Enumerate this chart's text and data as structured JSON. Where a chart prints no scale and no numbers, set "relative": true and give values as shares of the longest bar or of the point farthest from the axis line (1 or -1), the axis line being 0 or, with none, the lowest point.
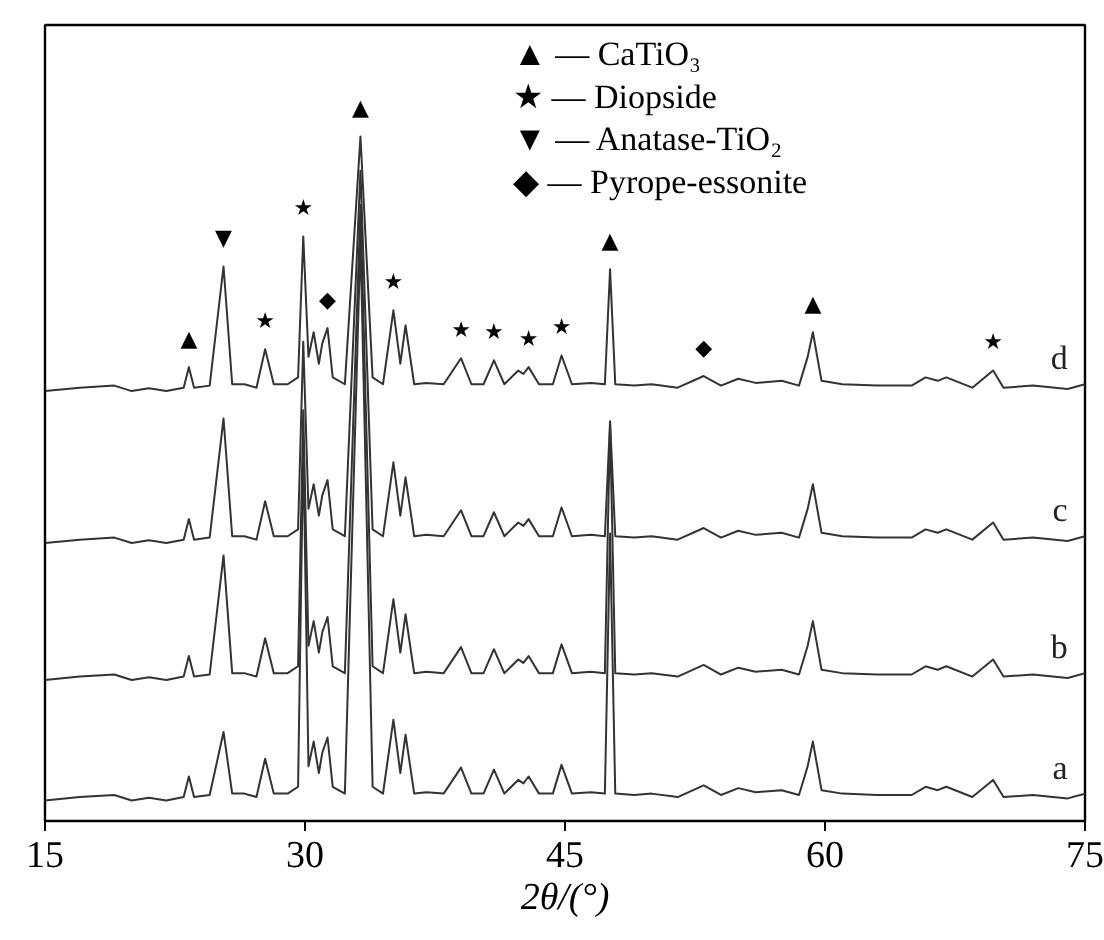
{
  "chart_data": {
    "type": "line",
    "xlabel": "2θ/(°)",
    "relative": true,
    "tick_labels": "x",
    "grid": false,
    "marker": "none",
    "line_style": "solid",
    "xlim": [
      15,
      75
    ],
    "xticks": [
      15,
      30,
      45,
      60,
      75
    ],
    "x": [
      15,
      17,
      19,
      20,
      21,
      22,
      23,
      23.3,
      23.6,
      24.5,
      25.3,
      25.8,
      26.5,
      27.2,
      27.7,
      28.2,
      29,
      29.6,
      29.9,
      30.2,
      30.5,
      30.8,
      31.0,
      31.3,
      31.6,
      32.3,
      33.2,
      33.9,
      34.5,
      35.1,
      35.5,
      35.8,
      36.3,
      37,
      38,
      39,
      39.6,
      40.3,
      40.9,
      41.5,
      42.3,
      42.6,
      42.9,
      43.5,
      44.3,
      44.8,
      45.4,
      46.5,
      47.3,
      47.6,
      47.9,
      49,
      50,
      51.5,
      53,
      54,
      55,
      56,
      57.5,
      58.5,
      59.0,
      59.3,
      59.8,
      61,
      63,
      65,
      65.8,
      66.5,
      67,
      68.5,
      69.7,
      70.3,
      72,
      74,
      75
    ],
    "series": [
      {
        "name": "a",
        "color": "#333333",
        "values": [
          0.03,
          0.035,
          0.038,
          0.03,
          0.034,
          0.03,
          0.035,
          0.065,
          0.035,
          0.038,
          0.13,
          0.04,
          0.04,
          0.035,
          0.091,
          0.04,
          0.04,
          0.05,
          0.55,
          0.08,
          0.116,
          0.07,
          0.1,
          0.122,
          0.05,
          0.04,
          0.85,
          0.05,
          0.04,
          0.148,
          0.07,
          0.126,
          0.04,
          0.042,
          0.04,
          0.078,
          0.04,
          0.04,
          0.075,
          0.04,
          0.06,
          0.055,
          0.065,
          0.04,
          0.04,
          0.082,
          0.04,
          0.042,
          0.04,
          0.42,
          0.04,
          0.038,
          0.04,
          0.035,
          0.052,
          0.038,
          0.048,
          0.042,
          0.045,
          0.038,
          0.08,
          0.116,
          0.045,
          0.04,
          0.038,
          0.038,
          0.05,
          0.045,
          0.05,
          0.035,
          0.06,
          0.035,
          0.038,
          0.033,
          0.04
        ]
      },
      {
        "name": "b",
        "color": "#333333",
        "values": [
          0.206,
          0.211,
          0.214,
          0.206,
          0.21,
          0.206,
          0.211,
          0.241,
          0.211,
          0.214,
          0.388,
          0.216,
          0.216,
          0.211,
          0.267,
          0.216,
          0.216,
          0.226,
          0.6,
          0.256,
          0.292,
          0.246,
          0.276,
          0.298,
          0.226,
          0.216,
          0.9,
          0.226,
          0.216,
          0.324,
          0.246,
          0.302,
          0.216,
          0.218,
          0.216,
          0.254,
          0.216,
          0.216,
          0.251,
          0.216,
          0.236,
          0.231,
          0.241,
          0.216,
          0.216,
          0.258,
          0.216,
          0.218,
          0.216,
          0.58,
          0.216,
          0.214,
          0.216,
          0.211,
          0.228,
          0.214,
          0.224,
          0.218,
          0.221,
          0.214,
          0.256,
          0.292,
          0.221,
          0.216,
          0.214,
          0.214,
          0.226,
          0.221,
          0.226,
          0.211,
          0.236,
          0.211,
          0.214,
          0.209,
          0.216
        ]
      },
      {
        "name": "c",
        "color": "#333333",
        "values": [
          0.406,
          0.411,
          0.414,
          0.406,
          0.41,
          0.406,
          0.411,
          0.441,
          0.411,
          0.414,
          0.588,
          0.416,
          0.416,
          0.411,
          0.467,
          0.416,
          0.416,
          0.426,
          0.7,
          0.456,
          0.492,
          0.446,
          0.476,
          0.498,
          0.426,
          0.416,
          0.95,
          0.426,
          0.416,
          0.524,
          0.446,
          0.502,
          0.416,
          0.418,
          0.416,
          0.454,
          0.416,
          0.416,
          0.451,
          0.416,
          0.436,
          0.431,
          0.441,
          0.416,
          0.416,
          0.458,
          0.416,
          0.418,
          0.416,
          0.584,
          0.416,
          0.414,
          0.416,
          0.411,
          0.428,
          0.414,
          0.424,
          0.418,
          0.421,
          0.414,
          0.456,
          0.492,
          0.421,
          0.416,
          0.414,
          0.414,
          0.426,
          0.421,
          0.426,
          0.411,
          0.436,
          0.411,
          0.414,
          0.409,
          0.416
        ]
      },
      {
        "name": "d",
        "color": "#333333",
        "values": [
          0.628,
          0.633,
          0.636,
          0.628,
          0.632,
          0.628,
          0.633,
          0.663,
          0.633,
          0.636,
          0.81,
          0.638,
          0.638,
          0.633,
          0.689,
          0.638,
          0.638,
          0.648,
          0.854,
          0.678,
          0.714,
          0.668,
          0.698,
          0.72,
          0.648,
          0.638,
          1.0,
          0.648,
          0.638,
          0.746,
          0.668,
          0.724,
          0.638,
          0.64,
          0.638,
          0.676,
          0.638,
          0.638,
          0.673,
          0.638,
          0.658,
          0.653,
          0.663,
          0.638,
          0.638,
          0.68,
          0.638,
          0.64,
          0.638,
          0.806,
          0.638,
          0.636,
          0.638,
          0.633,
          0.65,
          0.636,
          0.646,
          0.64,
          0.643,
          0.636,
          0.678,
          0.714,
          0.643,
          0.638,
          0.636,
          0.636,
          0.648,
          0.643,
          0.648,
          0.633,
          0.658,
          0.633,
          0.636,
          0.631,
          0.638
        ]
      }
    ],
    "annotations": [
      "▲ — CaTiO₃",
      "★ — Diopside",
      "▼ — Anatase-TiO₂",
      "◆ — Pyrope-essonite",
      {
        "text": "▲",
        "x": 23.3,
        "y": 0.663
      },
      {
        "text": "▼",
        "x": 25.3,
        "y": 0.81
      },
      {
        "text": "★",
        "x": 27.7,
        "y": 0.689
      },
      {
        "text": "★",
        "x": 29.9,
        "y": 0.854
      },
      {
        "text": "◆",
        "x": 31.3,
        "y": 0.72
      },
      {
        "text": "▲",
        "x": 33.2,
        "y": 1.0
      },
      {
        "text": "★",
        "x": 35.1,
        "y": 0.746
      },
      {
        "text": "★",
        "x": 39,
        "y": 0.676
      },
      {
        "text": "★",
        "x": 40.9,
        "y": 0.673
      },
      {
        "text": "★",
        "x": 42.9,
        "y": 0.663
      },
      {
        "text": "★",
        "x": 44.8,
        "y": 0.68
      },
      {
        "text": "▲",
        "x": 47.6,
        "y": 0.806
      },
      {
        "text": "◆",
        "x": 53,
        "y": 0.65
      },
      {
        "text": "▲",
        "x": 59.3,
        "y": 0.714
      },
      {
        "text": "★",
        "x": 69.7,
        "y": 0.658
      }
    ]
  }
}
